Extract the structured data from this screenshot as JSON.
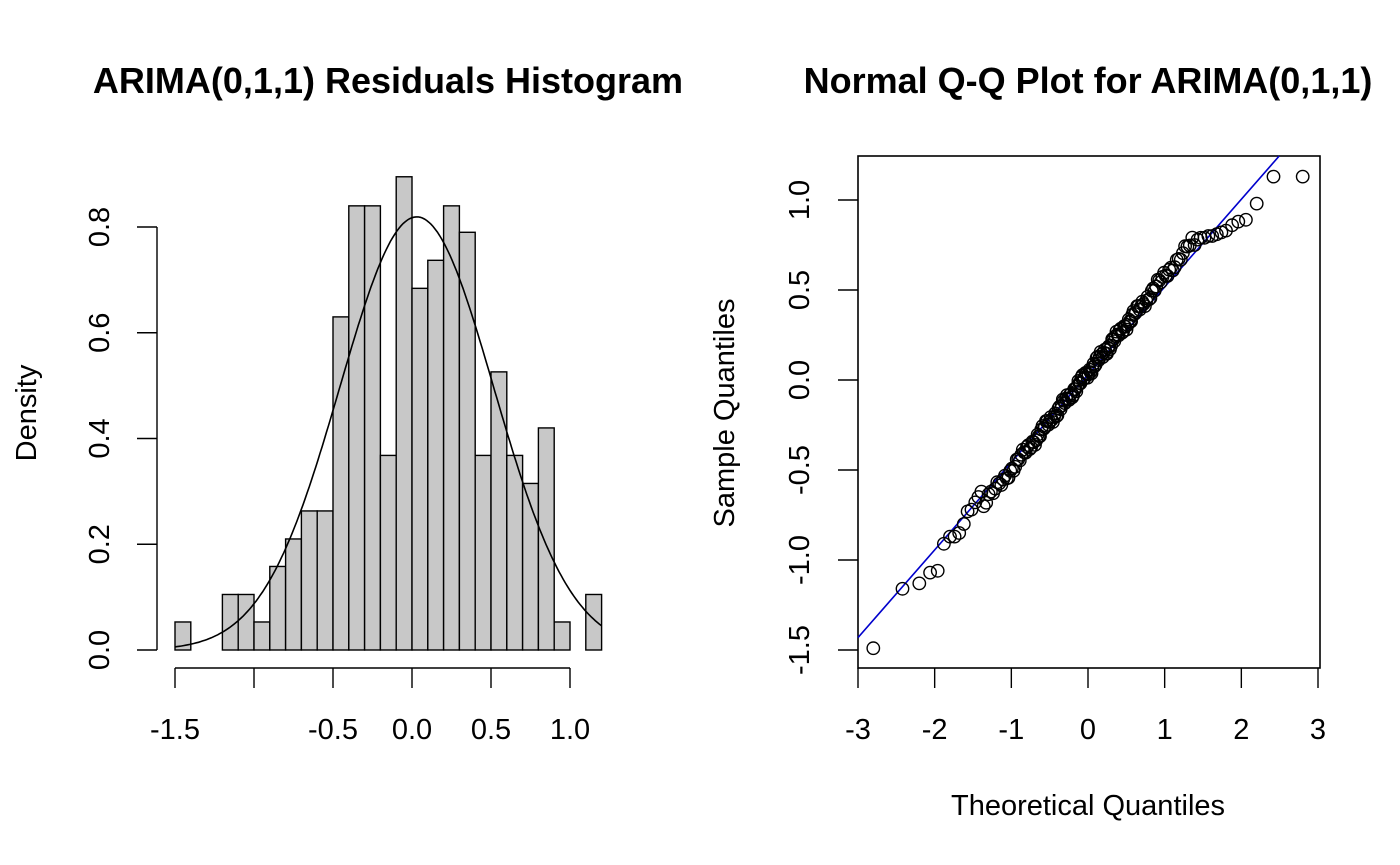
{
  "chart_data": [
    {
      "type": "histogram",
      "title": "ARIMA(0,1,1) Residuals Histogram",
      "xlabel": "",
      "ylabel": "Density",
      "xlim": [
        -1.55,
        1.2
      ],
      "ylim": [
        0,
        0.9
      ],
      "x_ticks": [
        -1.5,
        -1.0,
        -0.5,
        0.0,
        0.5,
        1.0
      ],
      "x_tick_labels": [
        "-1.5",
        "",
        "-0.5",
        "0.0",
        "0.5",
        "1.0"
      ],
      "y_ticks": [
        0.0,
        0.2,
        0.4,
        0.6,
        0.8
      ],
      "y_tick_labels": [
        "0.0",
        "0.2",
        "0.4",
        "0.6",
        "0.8"
      ],
      "bin_width": 0.1,
      "bin_edges": [
        -1.5,
        -1.4,
        -1.3,
        -1.2,
        -1.1,
        -1.0,
        -0.9,
        -0.8,
        -0.7,
        -0.6,
        -0.5,
        -0.4,
        -0.3,
        -0.2,
        -0.1,
        0.0,
        0.1,
        0.2,
        0.3,
        0.4,
        0.5,
        0.6,
        0.7,
        0.8,
        0.9,
        1.0,
        1.1,
        1.2
      ],
      "values": [
        0.053,
        0,
        0,
        0.105,
        0.105,
        0.053,
        0.158,
        0.21,
        0.263,
        0.263,
        0.63,
        0.84,
        0.84,
        0.368,
        0.895,
        0.684,
        0.737,
        0.84,
        0.79,
        0.368,
        0.526,
        0.368,
        0.315,
        0.42,
        0.053,
        0,
        0.105
      ],
      "bar_color": "#c8c8c8",
      "density_curve": {
        "type": "normal",
        "mean": 0.03,
        "sd": 0.487,
        "color": "#000000"
      }
    },
    {
      "type": "scatter",
      "title": "Normal Q-Q Plot for ARIMA(0,1,1)",
      "xlabel": "Theoretical Quantiles",
      "ylabel": "Sample Quantiles",
      "xlim": [
        -3,
        3
      ],
      "ylim": [
        -1.55,
        1.25
      ],
      "x_ticks": [
        -3,
        -2,
        -1,
        0,
        1,
        2,
        3
      ],
      "x_tick_labels": [
        "-3",
        "-2",
        "-1",
        "0",
        "1",
        "2",
        "3"
      ],
      "y_ticks": [
        -1.5,
        -1.0,
        -0.5,
        0.0,
        0.5,
        1.0
      ],
      "y_tick_labels": [
        "-1.5",
        "-1.0",
        "-0.5",
        "0.0",
        "0.5",
        "1.0"
      ],
      "n_points": 190,
      "quantiles_x": [
        -2.8,
        -2.42,
        -2.2,
        -2.06,
        -1.96,
        -1.88,
        -1.8,
        -1.74,
        -1.68,
        -1.62,
        -1.57,
        -1.52,
        -1.47,
        -1.43,
        -1.39
      ],
      "quantiles_y": [
        -1.49,
        -1.16,
        -1.13,
        -1.07,
        -1.06,
        -0.91,
        -0.87,
        -0.87,
        -0.85,
        -0.8,
        -0.73,
        -0.72,
        -0.68,
        -0.65,
        -0.62
      ],
      "upper_x": [
        1.39,
        1.43,
        1.47,
        1.52,
        1.57,
        1.62,
        1.68,
        1.74,
        1.8,
        1.88,
        1.96,
        2.06,
        2.2,
        2.42,
        2.8
      ],
      "upper_y": [
        0.75,
        0.78,
        0.79,
        0.79,
        0.8,
        0.8,
        0.81,
        0.82,
        0.83,
        0.86,
        0.88,
        0.89,
        0.98,
        1.13,
        1.13
      ],
      "mid_slope": 0.537,
      "mid_intercept": 0.04,
      "reference_line": {
        "intercept": 0.03,
        "slope": 0.487,
        "color": "#0000cc"
      },
      "point_style": "open-circle"
    }
  ]
}
